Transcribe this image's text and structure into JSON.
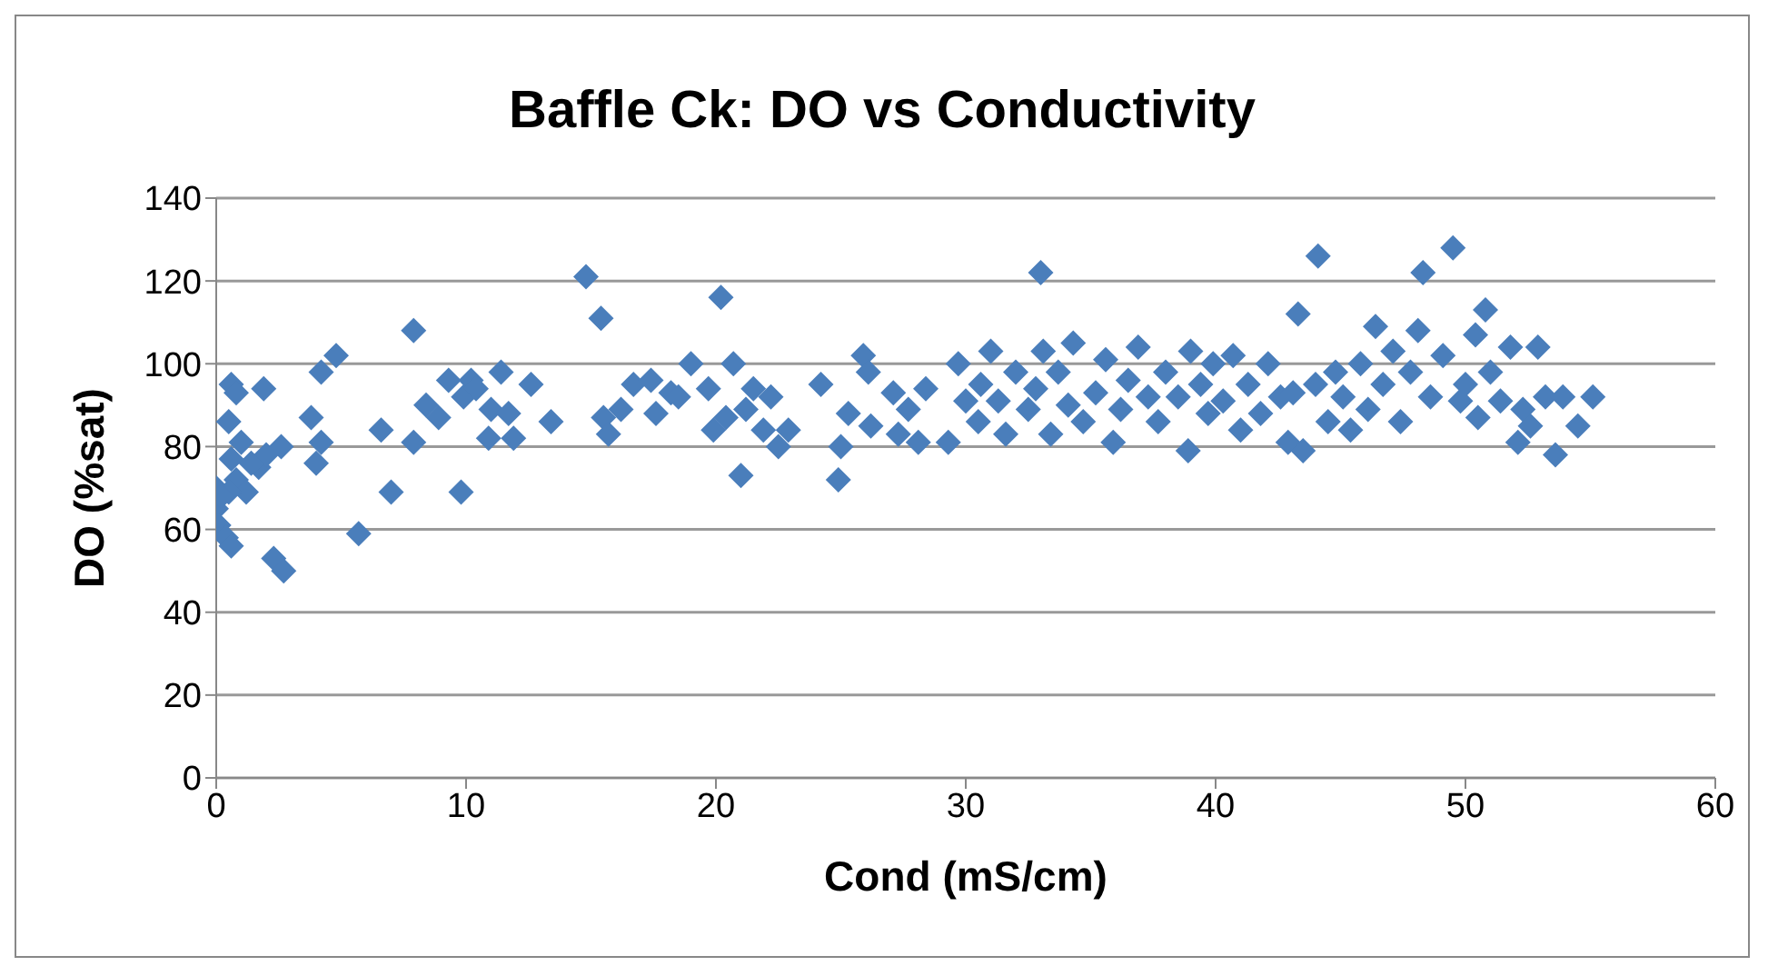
{
  "chart_data": {
    "type": "scatter",
    "title": "Baffle Ck: DO vs Conductivity",
    "xlabel": "Cond (mS/cm)",
    "ylabel": "DO (%sat)",
    "xlim": [
      0,
      60
    ],
    "xticks": [
      0,
      10,
      20,
      30,
      40,
      50,
      60
    ],
    "ylim": [
      0,
      140
    ],
    "yticks": [
      0,
      20,
      40,
      60,
      80,
      100,
      120,
      140
    ],
    "grid": "y",
    "marker": "diamond",
    "series": [
      {
        "color": "#4a7ebb",
        "x": [
          0,
          0,
          0.1,
          0.4,
          0.6,
          0.5,
          0.6,
          0.8,
          1,
          0.6,
          0.8,
          1.2,
          0.5,
          0.2,
          1.7,
          2,
          1.9,
          2.6,
          2.3,
          2.7,
          1.4,
          3.8,
          4,
          4.2,
          4.2,
          4.8,
          5.7,
          6.6,
          7,
          7.9,
          7.9,
          8.4,
          8.9,
          9.3,
          9.8,
          10.2,
          9.9,
          10.4,
          10.9,
          11,
          11.4,
          11.7,
          11.9,
          12.6,
          13.4,
          14.8,
          15.4,
          15.5,
          15.7,
          16.2,
          16.7,
          17.4,
          17.6,
          18.2,
          18.5,
          19,
          19.7,
          19.9,
          20.2,
          20.4,
          20.7,
          21,
          21.2,
          21.5,
          21.9,
          22.2,
          22.5,
          22.9,
          24.2,
          24.9,
          25,
          25.3,
          25.9,
          26.1,
          26.2,
          27.1,
          27.3,
          27.7,
          28.1,
          28.4,
          29.3,
          29.7,
          30,
          30.5,
          30.6,
          31,
          31.3,
          31.6,
          32,
          32.5,
          32.8,
          33,
          33.1,
          33.4,
          33.7,
          34.1,
          34.3,
          34.7,
          35.2,
          35.6,
          35.9,
          36.2,
          36.5,
          36.9,
          37.3,
          37.7,
          38,
          38.5,
          38.9,
          39,
          39.4,
          39.7,
          39.9,
          40.3,
          40.7,
          41,
          41.3,
          41.8,
          42.1,
          42.6,
          42.9,
          43.1,
          43.3,
          43.5,
          44,
          44.1,
          44.5,
          44.8,
          45.1,
          45.4,
          45.8,
          46.1,
          46.4,
          46.7,
          47.1,
          47.4,
          47.8,
          48.1,
          48.3,
          48.6,
          49.1,
          49.5,
          49.8,
          50,
          50.4,
          50.5,
          50.8,
          51,
          51.4,
          51.8,
          52.1,
          52.3,
          52.6,
          52.9,
          53.2,
          53.6,
          53.9,
          55.1,
          54.5
        ],
        "values": [
          70,
          65,
          61,
          58,
          56,
          86,
          95,
          93,
          81,
          77,
          72,
          69,
          69,
          68,
          75,
          78,
          94,
          80,
          53,
          50,
          76,
          87,
          76,
          81,
          98,
          102,
          59,
          84,
          69,
          108,
          81,
          90,
          87,
          96,
          69,
          96,
          92,
          94,
          82,
          89,
          98,
          88,
          82,
          95,
          86,
          121,
          111,
          87,
          83,
          89,
          95,
          96,
          88,
          93,
          92,
          100,
          94,
          84,
          116,
          87,
          100,
          73,
          89,
          94,
          84,
          92,
          80,
          84,
          95,
          72,
          80,
          88,
          102,
          98,
          85,
          93,
          83,
          89,
          81,
          94,
          81,
          100,
          91,
          86,
          95,
          103,
          91,
          83,
          98,
          89,
          94,
          122,
          103,
          83,
          98,
          90,
          105,
          86,
          93,
          101,
          81,
          89,
          96,
          104,
          92,
          86,
          98,
          92,
          79,
          103,
          95,
          88,
          100,
          91,
          102,
          84,
          95,
          88,
          100,
          92,
          81,
          93,
          112,
          79,
          95,
          126,
          86,
          98,
          92,
          84,
          100,
          89,
          109,
          95,
          103,
          86,
          98,
          108,
          122,
          92,
          102,
          128,
          91,
          95,
          107,
          87,
          113,
          98,
          91,
          104,
          81,
          89,
          85,
          104,
          92,
          78,
          92,
          92,
          85
        ]
      }
    ]
  }
}
